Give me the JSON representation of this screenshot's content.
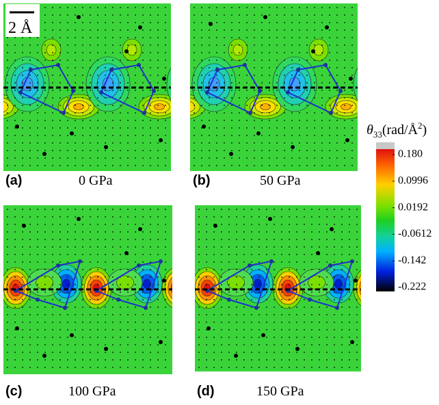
{
  "scale_bar": "2 Å",
  "panels": [
    {
      "label": "(a)",
      "pressure": "0 GPa"
    },
    {
      "label": "(b)",
      "pressure": "50 GPa"
    },
    {
      "label": "(c)",
      "pressure": "100 GPa"
    },
    {
      "label": "(d)",
      "pressure": "150 GPa"
    }
  ],
  "colorbar": {
    "title": {
      "symbol": "θ",
      "subscript": "33",
      "unit": "(rad/Å",
      "superscript": "2",
      "close": ")"
    },
    "ticks": [
      {
        "value": 0.18,
        "label": "0.180"
      },
      0.0996,
      0.0192,
      -0.0612,
      -0.142,
      -0.222
    ]
  }
}
